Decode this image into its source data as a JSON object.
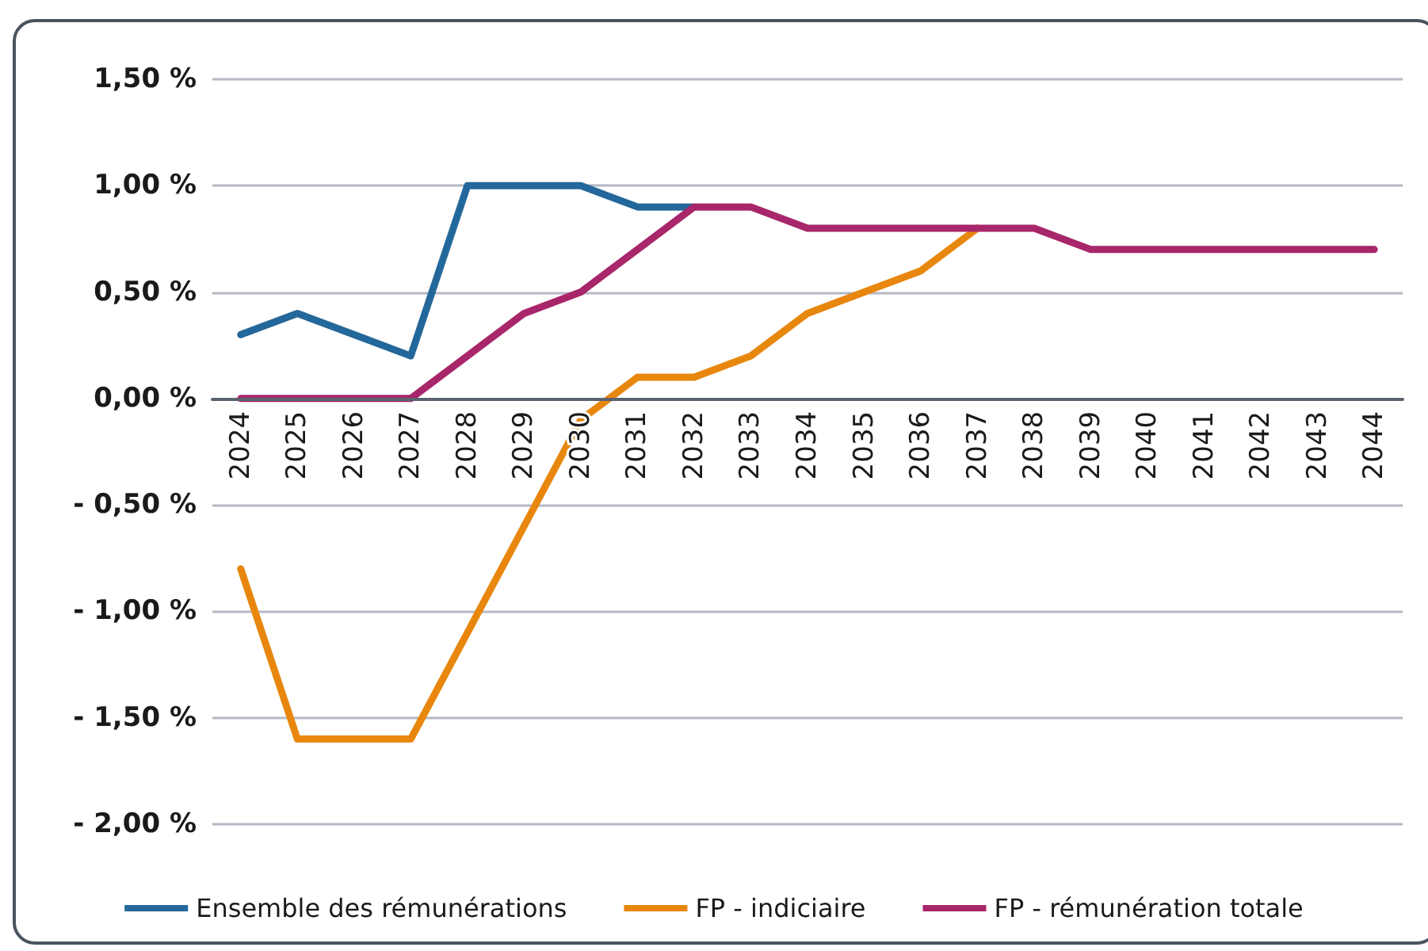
{
  "chart_data": {
    "type": "line",
    "categories": [
      "2024",
      "2025",
      "2026",
      "2027",
      "2028",
      "2029",
      "2030",
      "2031",
      "2032",
      "2033",
      "2034",
      "2035",
      "2036",
      "2037",
      "2038",
      "2039",
      "2040",
      "2041",
      "2042",
      "2043",
      "2044"
    ],
    "series": [
      {
        "name": "Ensemble des rémunérations",
        "color": "#24679a",
        "values": [
          0.3,
          0.4,
          0.3,
          0.2,
          1.0,
          1.0,
          1.0,
          0.9,
          0.9,
          null,
          null,
          null,
          null,
          null,
          null,
          null,
          null,
          null,
          null,
          null,
          null
        ]
      },
      {
        "name": "FP - indiciaire",
        "color": "#e8870e",
        "values": [
          -0.8,
          -1.6,
          -1.6,
          -1.6,
          -1.1,
          -0.6,
          -0.1,
          0.1,
          0.1,
          0.2,
          0.4,
          0.5,
          0.6,
          0.8,
          null,
          null,
          null,
          null,
          null,
          null,
          null
        ]
      },
      {
        "name": "FP - rémunération totale",
        "color": "#a8266a",
        "values": [
          0,
          0,
          0,
          0,
          0.2,
          0.4,
          0.5,
          0.7,
          0.9,
          0.9,
          0.8,
          0.8,
          0.8,
          0.8,
          0.8,
          0.7,
          0.7,
          0.7,
          0.7,
          0.7,
          0.7
        ]
      }
    ],
    "ylim": [
      -2,
      1.5
    ],
    "yticks": [
      {
        "value": -2,
        "label": "- 2,00 %"
      },
      {
        "value": -1.5,
        "label": "- 1,50 %"
      },
      {
        "value": -1,
        "label": "- 1,00 %"
      },
      {
        "value": -0.5,
        "label": "- 0,50 %"
      },
      {
        "value": 0,
        "label": "0,00 %"
      },
      {
        "value": 0.5,
        "label": "0,50 %"
      },
      {
        "value": 1,
        "label": "1,00 %"
      },
      {
        "value": 1.5,
        "label": "1,50 %"
      }
    ],
    "grid": "y",
    "legend": "bottom",
    "marker": "none",
    "line_style": "solid"
  }
}
